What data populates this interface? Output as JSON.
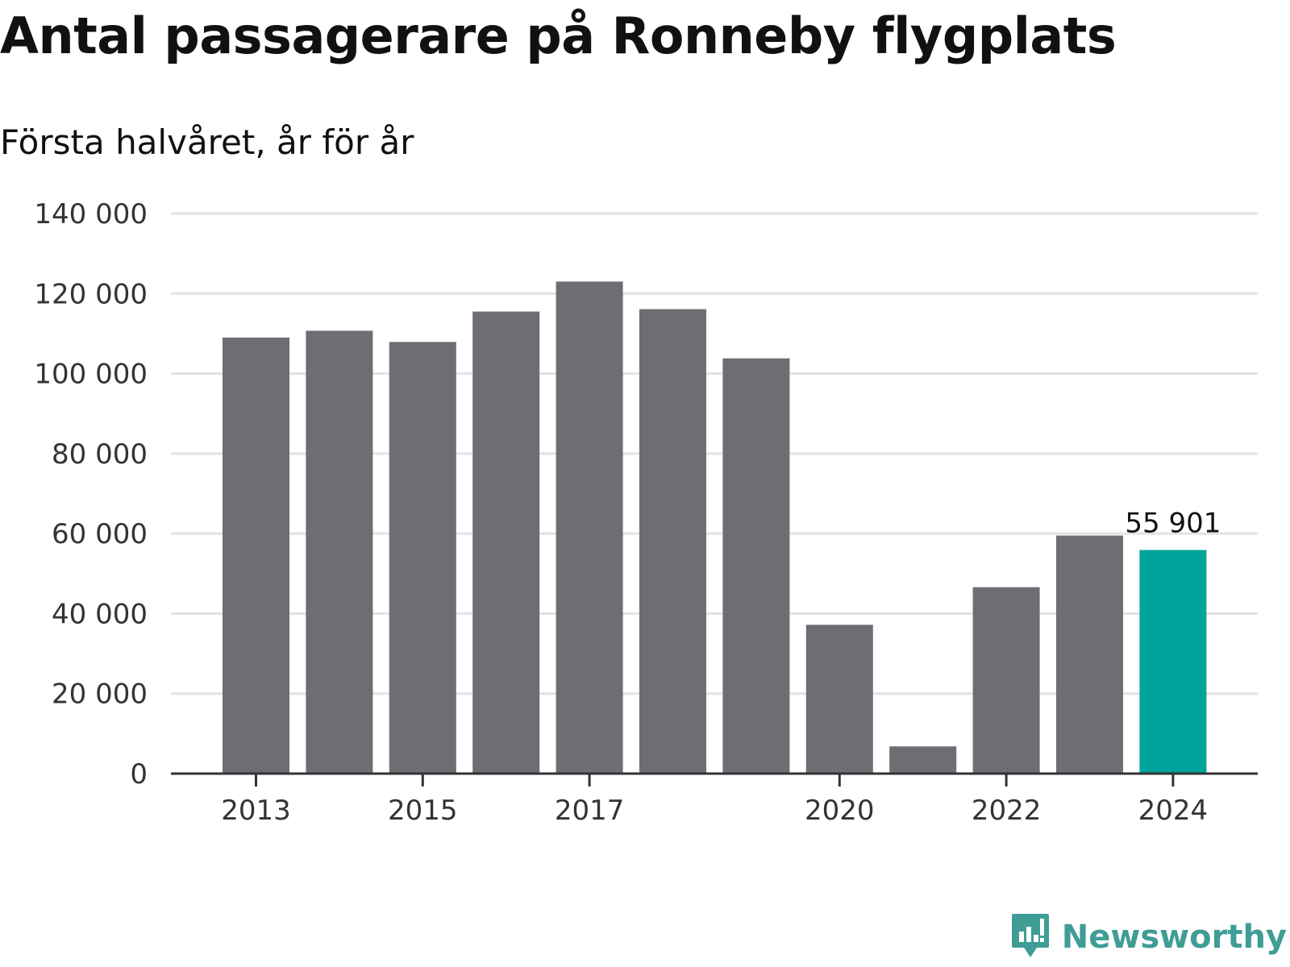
{
  "title": "Antal passagerare på Ronneby flygplats",
  "subtitle": "Första halvåret, år för år",
  "brand": {
    "name": "Newsworthy",
    "icon": "newsworthy-logo-icon",
    "color": "#3f9d95"
  },
  "colors": {
    "bar": "#6e6d74",
    "highlight": "#00a49a",
    "grid": "#e2e2e2",
    "axis": "#333333"
  },
  "chart_data": {
    "type": "bar",
    "title": "Antal passagerare på Ronneby flygplats",
    "subtitle": "Första halvåret, år för år",
    "xlabel": "",
    "ylabel": "",
    "categories": [
      "2013",
      "2014",
      "2015",
      "2016",
      "2017",
      "2018",
      "2019",
      "2020",
      "2021",
      "2022",
      "2023",
      "2024"
    ],
    "values": [
      109000,
      110700,
      107900,
      115500,
      123000,
      116100,
      103800,
      37200,
      6800,
      46600,
      59500,
      55901
    ],
    "highlight_index": 11,
    "data_label": "55 901",
    "x_tick_labels": [
      "2013",
      "2015",
      "2017",
      "2020",
      "2022",
      "2024"
    ],
    "ylim": [
      0,
      140000
    ],
    "y_ticks": [
      0,
      20000,
      40000,
      60000,
      80000,
      100000,
      120000,
      140000
    ],
    "y_tick_labels": [
      "0",
      "20 000",
      "40 000",
      "60 000",
      "80 000",
      "100 000",
      "120 000",
      "140 000"
    ],
    "grid": true,
    "legend": "none"
  }
}
